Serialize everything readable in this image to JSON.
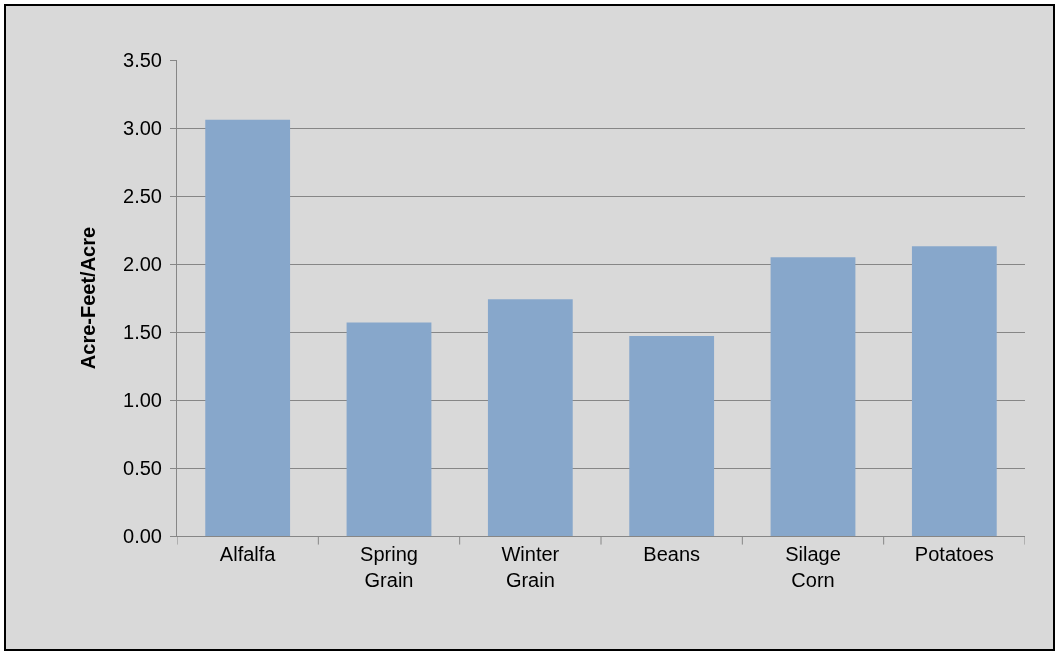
{
  "chart_data": {
    "type": "bar",
    "ylabel": "Acre-Feet/Acre",
    "categories": [
      "Alfalfa",
      "Spring Grain",
      "Winter Grain",
      "Beans",
      "Silage Corn",
      "Potatoes"
    ],
    "values": [
      3.06,
      1.57,
      1.74,
      1.47,
      2.05,
      2.13
    ],
    "color": "#87a7cb",
    "ylim": [
      0,
      3.5
    ],
    "yticks": [
      {
        "value": 0,
        "label": "0.00"
      },
      {
        "value": 0.5,
        "label": "0.50"
      },
      {
        "value": 1,
        "label": "1.00"
      },
      {
        "value": 1.5,
        "label": "1.50"
      },
      {
        "value": 2,
        "label": "2.00"
      },
      {
        "value": 2.5,
        "label": "2.50"
      },
      {
        "value": 3,
        "label": "3.00"
      },
      {
        "value": 3.5,
        "label": "3.50"
      }
    ],
    "grid": "y"
  }
}
